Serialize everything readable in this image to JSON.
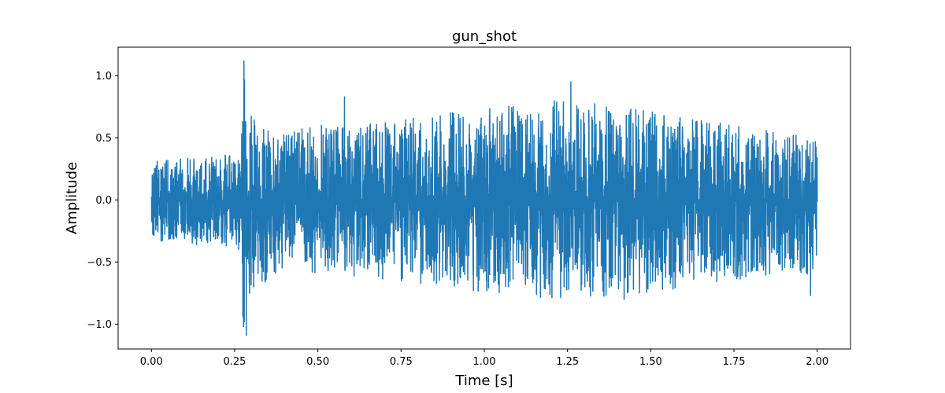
{
  "chart_data": {
    "type": "line",
    "title": "gun_shot",
    "xlabel": "Time [s]",
    "ylabel": "Amplitude",
    "xlim": [
      -0.1,
      2.1
    ],
    "ylim": [
      -1.2,
      1.23
    ],
    "grid": false,
    "legend": "none",
    "x_ticks": [
      0.0,
      0.25,
      0.5,
      0.75,
      1.0,
      1.25,
      1.5,
      1.75,
      2.0
    ],
    "x_tick_labels": [
      "0.00",
      "0.25",
      "0.50",
      "0.75",
      "1.00",
      "1.25",
      "1.50",
      "1.75",
      "2.00"
    ],
    "y_ticks": [
      -1.0,
      -0.5,
      0.0,
      0.5,
      1.0
    ],
    "y_tick_labels": [
      "−1.0",
      "−0.5",
      "0.0",
      "0.5",
      "1.0"
    ],
    "series": [
      {
        "color": "#1f77b4",
        "envelope_x": [
          0.0,
          0.27,
          0.275,
          0.3,
          0.35,
          0.4,
          0.5,
          0.75,
          1.0,
          1.25,
          1.5,
          1.75,
          2.0
        ],
        "envelope_max": [
          0.31,
          0.38,
          1.12,
          0.7,
          0.6,
          0.55,
          0.6,
          0.65,
          0.75,
          0.82,
          0.72,
          0.6,
          0.5
        ],
        "envelope_min": [
          -0.33,
          -0.4,
          -1.09,
          -0.75,
          -0.65,
          -0.55,
          -0.6,
          -0.65,
          -0.75,
          -0.8,
          -0.75,
          -0.65,
          -0.6
        ],
        "peaks": [
          {
            "x": 0.278,
            "y": 1.12
          },
          {
            "x": 0.285,
            "y": -1.09
          },
          {
            "x": 0.58,
            "y": 0.83
          },
          {
            "x": 1.26,
            "y": 0.95
          },
          {
            "x": 1.42,
            "y": -0.8
          },
          {
            "x": 1.98,
            "y": -0.77
          }
        ]
      }
    ]
  }
}
